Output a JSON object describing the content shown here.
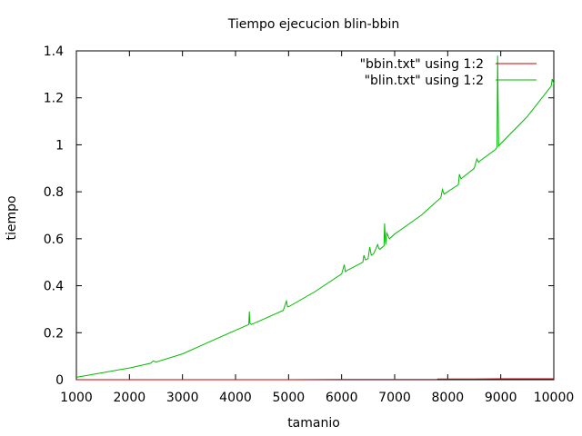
{
  "chart_data": {
    "type": "line",
    "title": "Tiempo ejecucion blin-bbin",
    "xlabel": "tamanio",
    "ylabel": "tiempo",
    "xlim": [
      1000,
      10000
    ],
    "ylim": [
      0,
      1.4
    ],
    "xticks": [
      1000,
      2000,
      3000,
      4000,
      5000,
      6000,
      7000,
      8000,
      9000,
      10000
    ],
    "yticks": [
      0,
      0.2,
      0.4,
      0.6,
      0.8,
      1,
      1.2,
      1.4
    ],
    "ytick_labels": [
      "0",
      "0.2",
      "0.4",
      "0.6",
      "0.8",
      "1",
      "1.2",
      "1.4"
    ],
    "grid": false,
    "legend_position": "top-right",
    "series": [
      {
        "name": "\"bbin.txt\" using 1:2",
        "color": "#cc0000",
        "x": [
          1000,
          2000,
          3000,
          4000,
          5000,
          6000,
          7000,
          7800,
          7810,
          8500,
          9000,
          10000
        ],
        "y": [
          0.0,
          0.0,
          0.0,
          0.0,
          0.0,
          0.001,
          0.001,
          0.001,
          0.003,
          0.003,
          0.004,
          0.004
        ]
      },
      {
        "name": "\"blin.txt\" using 1:2",
        "color": "#00bb00",
        "x": [
          1000,
          1500,
          2000,
          2400,
          2450,
          2500,
          3000,
          3500,
          4000,
          4250,
          4260,
          4270,
          4300,
          4500,
          4900,
          4960,
          4980,
          5000,
          5500,
          6000,
          6050,
          6070,
          6100,
          6400,
          6420,
          6450,
          6500,
          6530,
          6560,
          6600,
          6680,
          6700,
          6720,
          6800,
          6810,
          6830,
          6850,
          6900,
          7000,
          7500,
          7870,
          7900,
          7930,
          8000,
          8200,
          8220,
          8250,
          8500,
          8550,
          8580,
          8600,
          8900,
          8930,
          8940,
          8960,
          9000,
          9500,
          9950,
          9970,
          10000
        ],
        "y": [
          0.01,
          0.03,
          0.05,
          0.07,
          0.08,
          0.075,
          0.11,
          0.16,
          0.21,
          0.235,
          0.29,
          0.24,
          0.235,
          0.255,
          0.295,
          0.335,
          0.31,
          0.31,
          0.375,
          0.45,
          0.49,
          0.46,
          0.465,
          0.5,
          0.53,
          0.51,
          0.515,
          0.565,
          0.53,
          0.535,
          0.575,
          0.56,
          0.555,
          0.57,
          0.665,
          0.575,
          0.625,
          0.6,
          0.62,
          0.7,
          0.775,
          0.81,
          0.79,
          0.8,
          0.83,
          0.875,
          0.855,
          0.9,
          0.94,
          0.925,
          0.93,
          0.98,
          0.99,
          1.38,
          0.995,
          1.005,
          1.12,
          1.25,
          1.28,
          1.26
        ]
      }
    ]
  }
}
